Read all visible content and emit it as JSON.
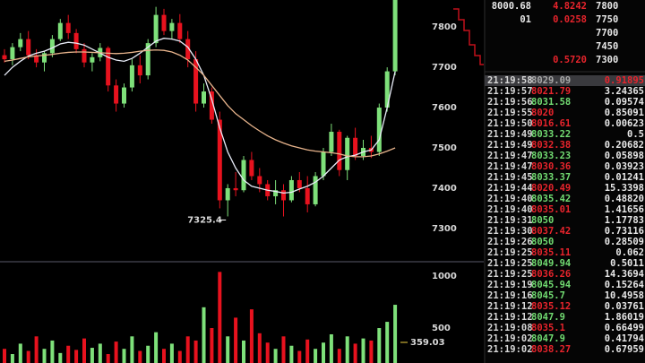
{
  "chart_data": [
    {
      "type": "candlestick",
      "ylim": [
        7222,
        7867
      ],
      "yticks": [
        7300,
        7400,
        7500,
        7600,
        7700,
        7800
      ],
      "up_color": "#7ee07a",
      "down_color": "#e8121e",
      "annotation": "7325.4",
      "open": [
        7730,
        7720,
        7750,
        7770,
        7730,
        7712,
        7735,
        7770,
        7810,
        7785,
        7745,
        7712,
        7725,
        7748,
        7655,
        7610,
        7650,
        7705,
        7680,
        7760,
        7830,
        7790,
        7810,
        7770,
        7720,
        7610,
        7640,
        7570,
        7370,
        7400,
        7395,
        7470,
        7430,
        7410,
        7380,
        7395,
        7370,
        7420,
        7400,
        7360,
        7430,
        7490,
        7540,
        7445,
        7525,
        7480,
        7500,
        7490,
        7600,
        7690
      ],
      "high": [
        7745,
        7760,
        7785,
        7790,
        7745,
        7740,
        7780,
        7820,
        7830,
        7795,
        7760,
        7735,
        7760,
        7752,
        7670,
        7660,
        7720,
        7730,
        7770,
        7850,
        7845,
        7820,
        7832,
        7790,
        7740,
        7660,
        7650,
        7590,
        7410,
        7440,
        7480,
        7490,
        7450,
        7420,
        7420,
        7410,
        7430,
        7440,
        7430,
        7440,
        7500,
        7560,
        7545,
        7530,
        7550,
        7520,
        7530,
        7610,
        7700,
        7880
      ],
      "low": [
        7712,
        7705,
        7740,
        7720,
        7700,
        7690,
        7725,
        7765,
        7770,
        7735,
        7700,
        7690,
        7715,
        7640,
        7590,
        7600,
        7640,
        7660,
        7670,
        7750,
        7780,
        7770,
        7760,
        7700,
        7590,
        7600,
        7560,
        7350,
        7330,
        7380,
        7390,
        7420,
        7390,
        7370,
        7360,
        7330,
        7365,
        7390,
        7340,
        7355,
        7420,
        7480,
        7430,
        7420,
        7470,
        7470,
        7475,
        7480,
        7590,
        7680
      ],
      "close": [
        7720,
        7750,
        7770,
        7730,
        7712,
        7735,
        7770,
        7810,
        7785,
        7745,
        7712,
        7725,
        7748,
        7655,
        7610,
        7650,
        7705,
        7680,
        7760,
        7830,
        7790,
        7810,
        7770,
        7720,
        7610,
        7640,
        7570,
        7370,
        7400,
        7395,
        7470,
        7430,
        7410,
        7380,
        7395,
        7370,
        7420,
        7400,
        7360,
        7430,
        7490,
        7540,
        7445,
        7525,
        7480,
        7500,
        7490,
        7600,
        7690,
        7870
      ],
      "ma": [
        {
          "color": "#e8ecf8",
          "values": [
            7680,
            7700,
            7715,
            7728,
            7735,
            7740,
            7748,
            7758,
            7762,
            7760,
            7755,
            7745,
            7735,
            7725,
            7718,
            7715,
            7722,
            7735,
            7750,
            7765,
            7772,
            7770,
            7765,
            7750,
            7720,
            7680,
            7620,
            7550,
            7490,
            7450,
            7420,
            7405,
            7400,
            7395,
            7392,
            7388,
            7390,
            7398,
            7405,
            7415,
            7430,
            7450,
            7470,
            7478,
            7482,
            7490,
            7495,
            7520,
            7600,
            7690
          ]
        },
        {
          "color": "#e8b48c",
          "values": [
            7715,
            7718,
            7722,
            7726,
            7728,
            7730,
            7732,
            7735,
            7737,
            7738,
            7738,
            7737,
            7736,
            7735,
            7734,
            7735,
            7737,
            7740,
            7742,
            7743,
            7742,
            7738,
            7730,
            7718,
            7700,
            7680,
            7655,
            7630,
            7605,
            7585,
            7570,
            7555,
            7542,
            7530,
            7520,
            7512,
            7505,
            7500,
            7495,
            7492,
            7490,
            7488,
            7485,
            7480,
            7478,
            7478,
            7480,
            7485,
            7492,
            7500
          ]
        }
      ]
    },
    {
      "type": "bar",
      "ylim": [
        164,
        1138
      ],
      "yticks": [
        500,
        1000
      ],
      "annotation": "359.03",
      "annotation_color": "#f0d040",
      "values": [
        300,
        250,
        350,
        280,
        420,
        300,
        380,
        260,
        330,
        290,
        400,
        310,
        350,
        250,
        370,
        300,
        420,
        280,
        330,
        460,
        300,
        350,
        280,
        420,
        380,
        700,
        500,
        1040,
        420,
        600,
        380,
        680,
        450,
        360,
        300,
        420,
        330,
        280,
        390,
        300,
        360,
        440,
        300,
        420,
        350,
        400,
        380,
        500,
        560,
        724
      ]
    }
  ],
  "order_book": [
    {
      "price": "8000.68",
      "amount": "4.8242",
      "level": "7800"
    },
    {
      "price": "01",
      "amount": "0.0258",
      "level": "7750"
    },
    {
      "level": "7700"
    },
    {
      "level": "7450"
    },
    {
      "amount": "0.5720",
      "level": "7300"
    }
  ],
  "trades": [
    {
      "time": "21:19:58",
      "price": "8029.09",
      "amount": "0.91895",
      "color": "#a8a8a8",
      "highlight": true
    },
    {
      "time": "21:19:57",
      "price": "8021.79",
      "amount": "3.24365",
      "color": "#e8242c"
    },
    {
      "time": "21:19:56",
      "price": "8031.58",
      "amount": "0.09574",
      "color": "#72dc72"
    },
    {
      "time": "21:19:55",
      "price": "8020",
      "amount": "0.85091",
      "color": "#e8242c"
    },
    {
      "time": "21:19:50",
      "price": "8016.61",
      "amount": "0.00623",
      "color": "#e8242c"
    },
    {
      "time": "21:19:49",
      "price": "8033.22",
      "amount": "0.5",
      "color": "#72dc72"
    },
    {
      "time": "21:19:49",
      "price": "8032.38",
      "amount": "0.20682",
      "color": "#e8242c"
    },
    {
      "time": "21:19:47",
      "price": "8033.23",
      "amount": "0.05898",
      "color": "#72dc72"
    },
    {
      "time": "21:19:47",
      "price": "8030.36",
      "amount": "0.03923",
      "color": "#e8242c"
    },
    {
      "time": "21:19:45",
      "price": "8033.37",
      "amount": "0.01241",
      "color": "#72dc72"
    },
    {
      "time": "21:19:44",
      "price": "8020.49",
      "amount": "15.3398",
      "color": "#e8242c"
    },
    {
      "time": "21:19:40",
      "price": "8035.42",
      "amount": "0.48820",
      "color": "#72dc72"
    },
    {
      "time": "21:19:40",
      "price": "8035.01",
      "amount": "1.41656",
      "color": "#e8242c"
    },
    {
      "time": "21:19:31",
      "price": "8050",
      "amount": "1.17783",
      "color": "#72dc72"
    },
    {
      "time": "21:19:30",
      "price": "8037.42",
      "amount": "0.73116",
      "color": "#e8242c"
    },
    {
      "time": "21:19:26",
      "price": "8050",
      "amount": "0.28509",
      "color": "#72dc72"
    },
    {
      "time": "21:19:25",
      "price": "8035.11",
      "amount": "0.062",
      "color": "#e8242c"
    },
    {
      "time": "21:19:25",
      "price": "8049.94",
      "amount": "0.5011",
      "color": "#72dc72"
    },
    {
      "time": "21:19:25",
      "price": "8036.26",
      "amount": "14.3694",
      "color": "#e8242c"
    },
    {
      "time": "21:19:19",
      "price": "8045.94",
      "amount": "0.15264",
      "color": "#72dc72"
    },
    {
      "time": "21:19:16",
      "price": "8045.7",
      "amount": "10.4958",
      "color": "#72dc72"
    },
    {
      "time": "21:19:12",
      "price": "8035.12",
      "amount": "0.03761",
      "color": "#e8242c"
    },
    {
      "time": "21:19:12",
      "price": "8047.9",
      "amount": "1.86019",
      "color": "#72dc72"
    },
    {
      "time": "21:19:08",
      "price": "8035.1",
      "amount": "0.66499",
      "color": "#e8242c"
    },
    {
      "time": "21:19:02",
      "price": "8047.9",
      "amount": "0.41794",
      "color": "#72dc72"
    },
    {
      "time": "21:19:02",
      "price": "8038.27",
      "amount": "0.67959",
      "color": "#e8242c"
    }
  ]
}
